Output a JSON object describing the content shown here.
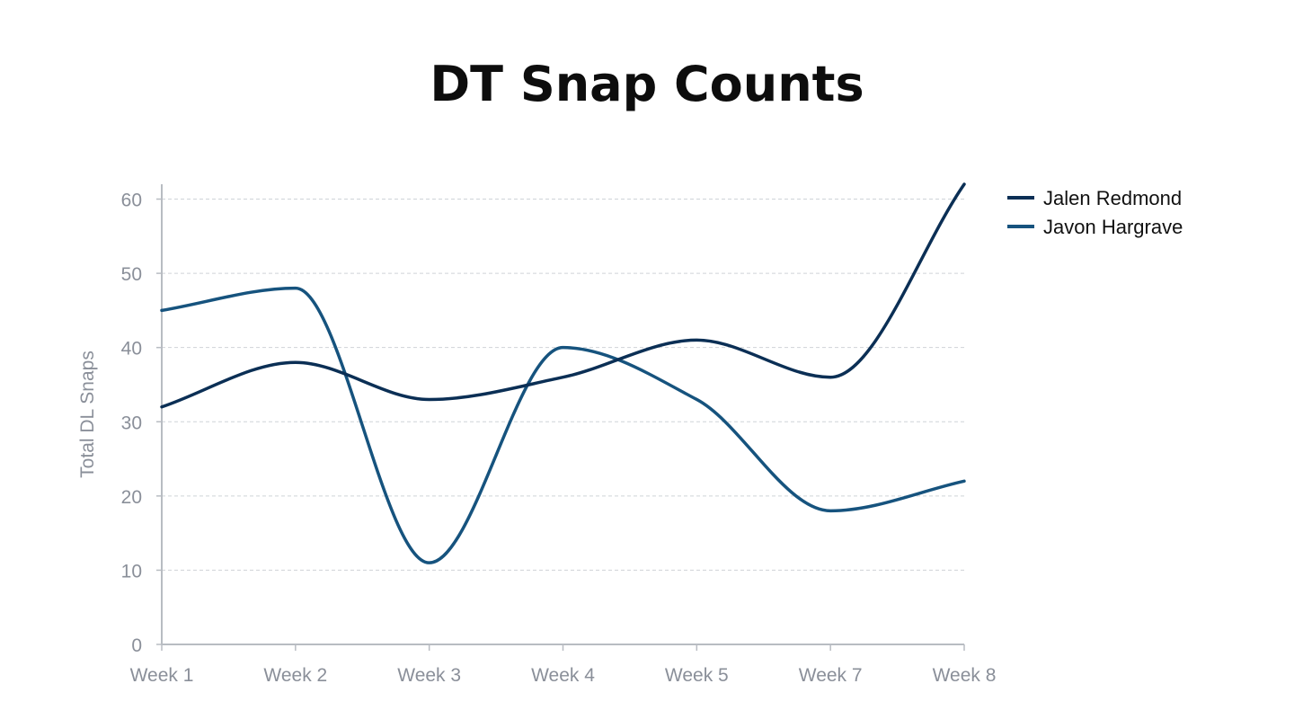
{
  "chart_data": {
    "type": "line",
    "title": "DT Snap Counts",
    "xlabel": "",
    "ylabel": "Total DL Snaps",
    "categories": [
      "Week 1",
      "Week 2",
      "Week 3",
      "Week 4",
      "Week 5",
      "Week 7",
      "Week 8"
    ],
    "ylim": [
      0,
      62
    ],
    "yticks": [
      0,
      10,
      20,
      30,
      40,
      50,
      60
    ],
    "grid": true,
    "legend_position": "top-right",
    "series": [
      {
        "name": "Jalen Redmond",
        "color": "#0b2f55",
        "values": [
          32,
          38,
          33,
          36,
          41,
          36,
          62
        ]
      },
      {
        "name": "Javon Hargrave",
        "color": "#16537e",
        "values": [
          45,
          48,
          11,
          40,
          33,
          18,
          22
        ]
      }
    ]
  }
}
